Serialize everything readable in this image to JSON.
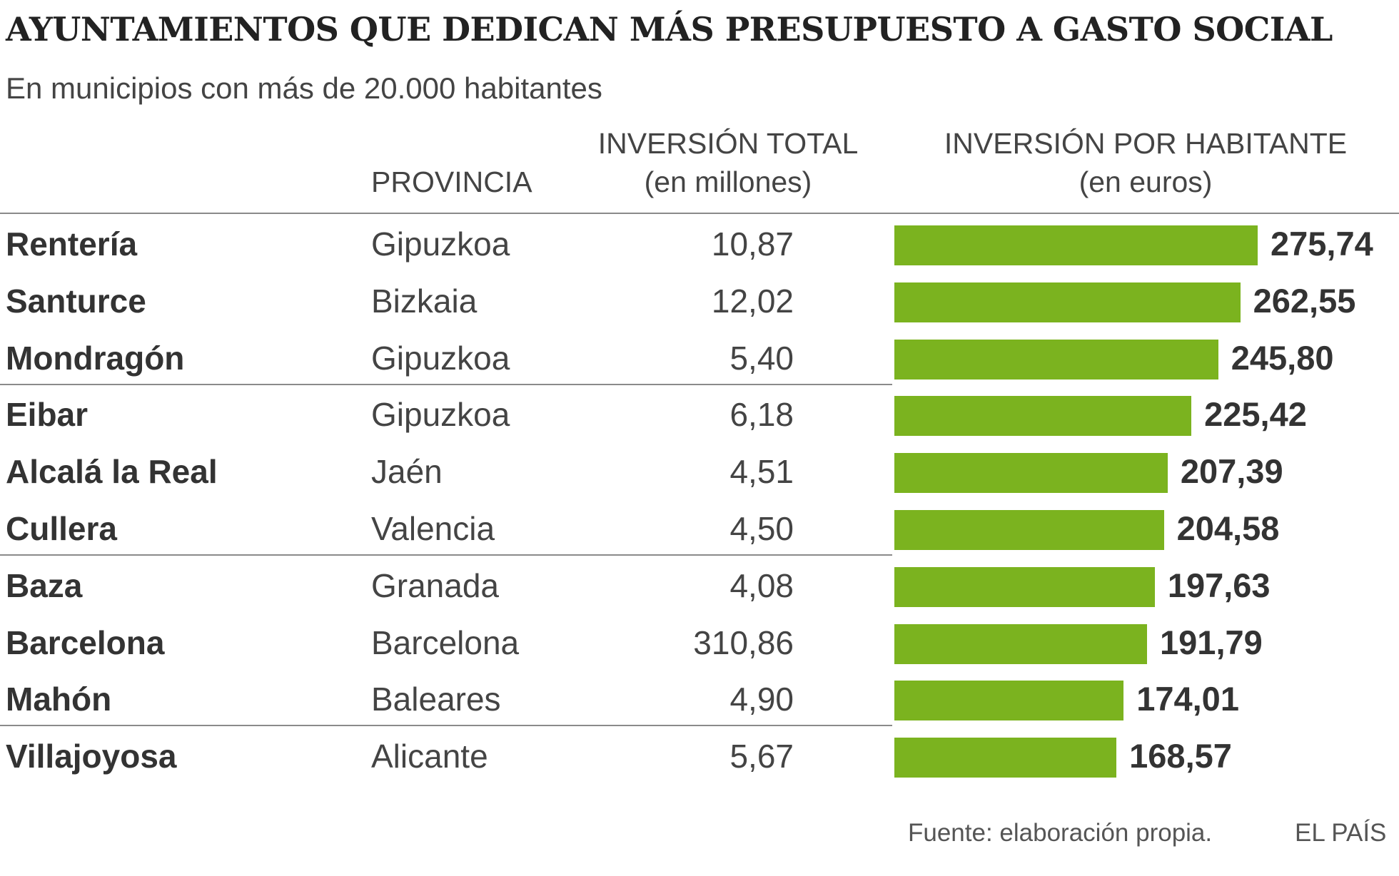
{
  "header": {
    "title": "AYUNTAMIENTOS QUE DEDICAN MÁS PRESUPUESTO A GASTO SOCIAL",
    "subtitle": "En municipios con más de 20.000 habitantes",
    "col_provincia": "PROVINCIA",
    "col_total_line1": "INVERSIÓN TOTAL",
    "col_total_line2": "(en millones)",
    "col_ph_line1": "INVERSIÓN POR HABITANTE",
    "col_ph_line2": "(en euros)"
  },
  "colors": {
    "bar": "#7bb31f",
    "text": "#333333",
    "rule": "#8a8a8a"
  },
  "chart_data": {
    "type": "bar",
    "orientation": "horizontal",
    "title": "AYUNTAMIENTOS QUE DEDICAN MÁS PRESUPUESTO A GASTO SOCIAL",
    "subtitle": "En municipios con más de 20.000 habitantes",
    "xlabel": "INVERSIÓN POR HABITANTE (en euros)",
    "ylabel": "",
    "xlim": [
      0,
      280
    ],
    "categories": [
      "Rentería",
      "Santurce",
      "Mondragón",
      "Eibar",
      "Alcalá la Real",
      "Cullera",
      "Baza",
      "Barcelona",
      "Mahón",
      "Villajoyosa"
    ],
    "values": [
      275.74,
      262.55,
      245.8,
      225.42,
      207.39,
      204.58,
      197.63,
      191.79,
      174.01,
      168.57
    ],
    "rows": [
      {
        "municipio": "Rentería",
        "provincia": "Gipuzkoa",
        "total": "10,87",
        "per_hab": 275.74,
        "per_hab_label": "275,74"
      },
      {
        "municipio": "Santurce",
        "provincia": "Bizkaia",
        "total": "12,02",
        "per_hab": 262.55,
        "per_hab_label": "262,55"
      },
      {
        "municipio": "Mondragón",
        "provincia": "Gipuzkoa",
        "total": "5,40",
        "per_hab": 245.8,
        "per_hab_label": "245,80"
      },
      {
        "municipio": "Eibar",
        "provincia": "Gipuzkoa",
        "total": "6,18",
        "per_hab": 225.42,
        "per_hab_label": "225,42"
      },
      {
        "municipio": "Alcalá la Real",
        "provincia": "Jaén",
        "total": "4,51",
        "per_hab": 207.39,
        "per_hab_label": "207,39"
      },
      {
        "municipio": "Cullera",
        "provincia": "Valencia",
        "total": "4,50",
        "per_hab": 204.58,
        "per_hab_label": "204,58"
      },
      {
        "municipio": "Baza",
        "provincia": "Granada",
        "total": "4,08",
        "per_hab": 197.63,
        "per_hab_label": "197,63"
      },
      {
        "municipio": "Barcelona",
        "provincia": "Barcelona",
        "total": "310,86",
        "per_hab": 191.79,
        "per_hab_label": "191,79"
      },
      {
        "municipio": "Mahón",
        "provincia": "Baleares",
        "total": "4,90",
        "per_hab": 174.01,
        "per_hab_label": "174,01"
      },
      {
        "municipio": "Villajoyosa",
        "provincia": "Alicante",
        "total": "5,67",
        "per_hab": 168.57,
        "per_hab_label": "168,57"
      }
    ]
  },
  "footer": {
    "source": "Fuente: elaboración propia.",
    "brand": "EL PAÍS"
  }
}
